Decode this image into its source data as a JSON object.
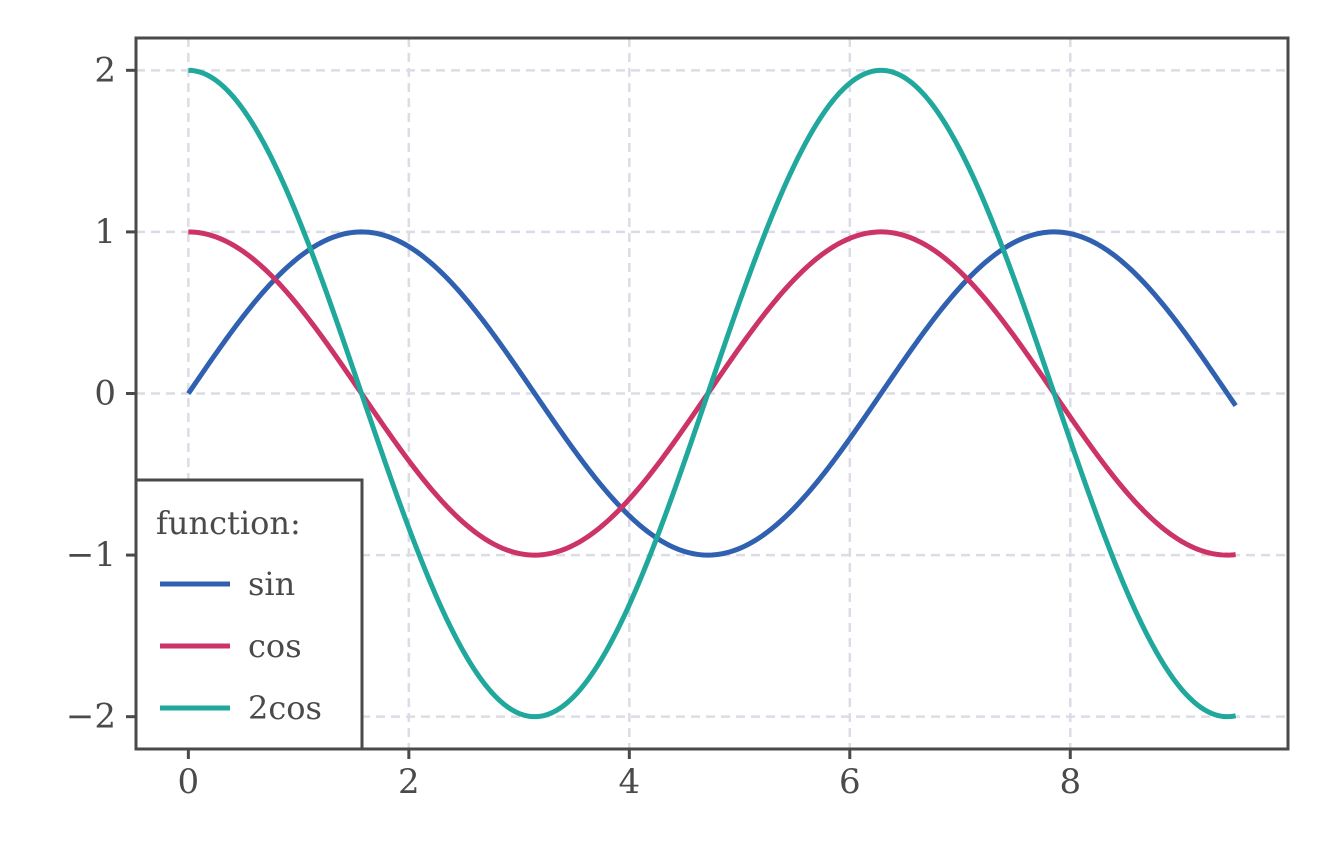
{
  "chart_data": {
    "type": "line",
    "title": "",
    "xlabel": "",
    "ylabel": "",
    "xlim": [
      -0.475,
      9.975
    ],
    "ylim": [
      -2.2,
      2.2
    ],
    "x_ticks": [
      0,
      2,
      4,
      6,
      8
    ],
    "y_ticks": [
      2,
      1,
      0,
      -1,
      -2
    ],
    "x_tick_labels": [
      "0",
      "2",
      "4",
      "6",
      "8"
    ],
    "y_tick_labels": [
      "2",
      "1",
      "0",
      "−1",
      "−2"
    ],
    "grid": true,
    "grid_style": "dashed",
    "legend": {
      "title": "function:",
      "placement": "lower-left"
    },
    "x_range": [
      0,
      9.5
    ],
    "series": [
      {
        "name": "sin",
        "function": "sin(x)",
        "color": "#3060b0"
      },
      {
        "name": "cos",
        "function": "cos(x)",
        "color": "#cc3366"
      },
      {
        "name": "2cos",
        "function": "2*cos(x)",
        "color": "#20a89c"
      }
    ]
  }
}
